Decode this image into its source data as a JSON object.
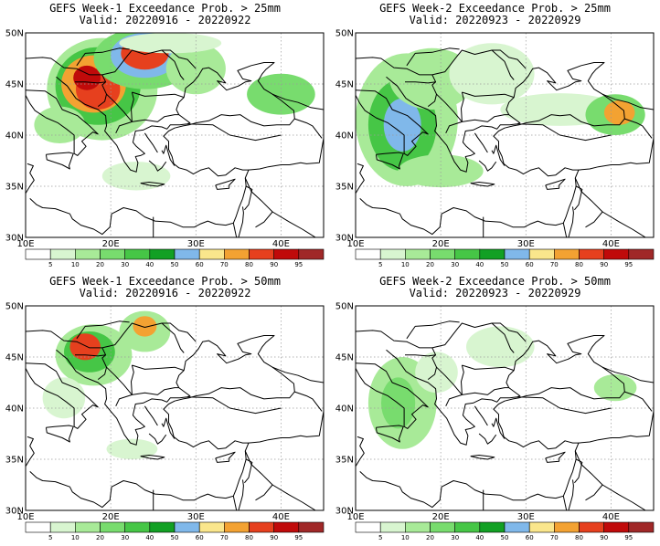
{
  "maps": [
    {
      "id": "week1-25",
      "title": "GEFS Week-1 Exceedance Prob. > 25mm",
      "valid": "Valid: 20220916 - 20220922",
      "blobs": [
        {
          "lon": 19.0,
          "lat": 44.5,
          "rlon": 6.5,
          "rlat": 5.0,
          "level": 2
        },
        {
          "lon": 18.5,
          "lat": 44.8,
          "rlon": 5.0,
          "rlat": 3.8,
          "level": 4
        },
        {
          "lon": 18.0,
          "lat": 45.0,
          "rlon": 3.8,
          "rlat": 2.8,
          "level": 8
        },
        {
          "lon": 18.5,
          "lat": 44.5,
          "rlon": 2.6,
          "rlat": 2.0,
          "level": 9
        },
        {
          "lon": 17.2,
          "lat": 45.6,
          "rlon": 1.6,
          "rlat": 1.2,
          "level": 10
        },
        {
          "lon": 24.0,
          "lat": 47.5,
          "rlon": 6.0,
          "rlat": 3.0,
          "level": 3
        },
        {
          "lon": 24.0,
          "lat": 47.8,
          "rlon": 4.0,
          "rlat": 2.2,
          "level": 6
        },
        {
          "lon": 24.0,
          "lat": 48.0,
          "rlon": 2.8,
          "rlat": 1.6,
          "level": 9
        },
        {
          "lon": 14.0,
          "lat": 41.0,
          "rlon": 3.0,
          "rlat": 1.8,
          "level": 2
        },
        {
          "lon": 23.0,
          "lat": 36.0,
          "rlon": 4.0,
          "rlat": 1.4,
          "level": 1
        },
        {
          "lon": 30.0,
          "lat": 46.5,
          "rlon": 3.5,
          "rlat": 2.5,
          "level": 2
        },
        {
          "lon": 40.0,
          "lat": 44.0,
          "rlon": 4.0,
          "rlat": 2.0,
          "level": 3
        },
        {
          "lon": 27.0,
          "lat": 49.0,
          "rlon": 6.0,
          "rlat": 1.0,
          "level": 1
        }
      ]
    },
    {
      "id": "week2-25",
      "title": "GEFS Week-2 Exceedance Prob. > 25mm",
      "valid": "Valid: 20220923 - 20220929",
      "blobs": [
        {
          "lon": 16.0,
          "lat": 41.5,
          "rlon": 6.0,
          "rlat": 6.5,
          "level": 2
        },
        {
          "lon": 15.5,
          "lat": 41.0,
          "rlon": 4.0,
          "rlat": 4.5,
          "level": 4
        },
        {
          "lon": 15.5,
          "lat": 41.0,
          "rlon": 2.2,
          "rlat": 2.6,
          "level": 6
        },
        {
          "lon": 19.0,
          "lat": 45.5,
          "rlon": 5.0,
          "rlat": 3.0,
          "level": 2
        },
        {
          "lon": 26.0,
          "lat": 46.0,
          "rlon": 5.0,
          "rlat": 3.0,
          "level": 1
        },
        {
          "lon": 34.0,
          "lat": 42.5,
          "rlon": 7.0,
          "rlat": 1.6,
          "level": 1
        },
        {
          "lon": 40.5,
          "lat": 42.0,
          "rlon": 3.5,
          "rlat": 2.0,
          "level": 3
        },
        {
          "lon": 41.0,
          "lat": 42.2,
          "rlon": 1.8,
          "rlat": 1.2,
          "level": 8
        },
        {
          "lon": 20.0,
          "lat": 36.5,
          "rlon": 5.0,
          "rlat": 1.6,
          "level": 2
        }
      ]
    },
    {
      "id": "week1-50",
      "title": "GEFS Week-1 Exceedance Prob. > 50mm",
      "valid": "Valid: 20220916 - 20220922",
      "blobs": [
        {
          "lon": 18.0,
          "lat": 45.2,
          "rlon": 4.5,
          "rlat": 3.0,
          "level": 2
        },
        {
          "lon": 17.5,
          "lat": 45.5,
          "rlon": 3.0,
          "rlat": 2.0,
          "level": 4
        },
        {
          "lon": 17.0,
          "lat": 46.0,
          "rlon": 1.8,
          "rlat": 1.3,
          "level": 9
        },
        {
          "lon": 24.0,
          "lat": 47.5,
          "rlon": 3.0,
          "rlat": 2.0,
          "level": 2
        },
        {
          "lon": 24.0,
          "lat": 48.0,
          "rlon": 1.4,
          "rlat": 1.0,
          "level": 8
        },
        {
          "lon": 14.5,
          "lat": 41.0,
          "rlon": 2.5,
          "rlat": 2.0,
          "level": 1
        },
        {
          "lon": 22.5,
          "lat": 36.0,
          "rlon": 3.0,
          "rlat": 1.0,
          "level": 1
        }
      ]
    },
    {
      "id": "week2-50",
      "title": "GEFS Week-2 Exceedance Prob. > 50mm",
      "valid": "Valid: 20220923 - 20220929",
      "blobs": [
        {
          "lon": 15.5,
          "lat": 40.5,
          "rlon": 4.0,
          "rlat": 4.5,
          "level": 2
        },
        {
          "lon": 15.0,
          "lat": 40.5,
          "rlon": 2.0,
          "rlat": 2.5,
          "level": 3
        },
        {
          "lon": 19.5,
          "lat": 43.5,
          "rlon": 2.5,
          "rlat": 2.0,
          "level": 1
        },
        {
          "lon": 40.5,
          "lat": 42.0,
          "rlon": 2.5,
          "rlat": 1.3,
          "level": 2
        },
        {
          "lon": 27.0,
          "lat": 46.0,
          "rlon": 4.0,
          "rlat": 2.0,
          "level": 1
        }
      ]
    }
  ],
  "axes": {
    "lon_range": [
      10,
      45
    ],
    "lat_range": [
      30,
      50
    ],
    "lon_ticks": [
      10,
      20,
      30,
      40
    ],
    "lon_tick_labels": [
      "10E",
      "20E",
      "30E",
      "40E"
    ],
    "lat_ticks": [
      30,
      35,
      40,
      45,
      50
    ],
    "lat_tick_labels": [
      "30N",
      "35N",
      "40N",
      "45N",
      "50N"
    ],
    "grid": true
  },
  "colorbar": {
    "labels": [
      "5",
      "10",
      "20",
      "30",
      "40",
      "50",
      "60",
      "70",
      "80",
      "90",
      "95"
    ],
    "colors": [
      "#ffffff",
      "#d8f5d0",
      "#a8ea98",
      "#78dc6e",
      "#46c646",
      "#12a024",
      "#80b8ea",
      "#fae68c",
      "#f3a232",
      "#e6401e",
      "#c00a0a",
      "#a02828"
    ]
  },
  "land_color": "#ffffff",
  "line_color": "#000000"
}
